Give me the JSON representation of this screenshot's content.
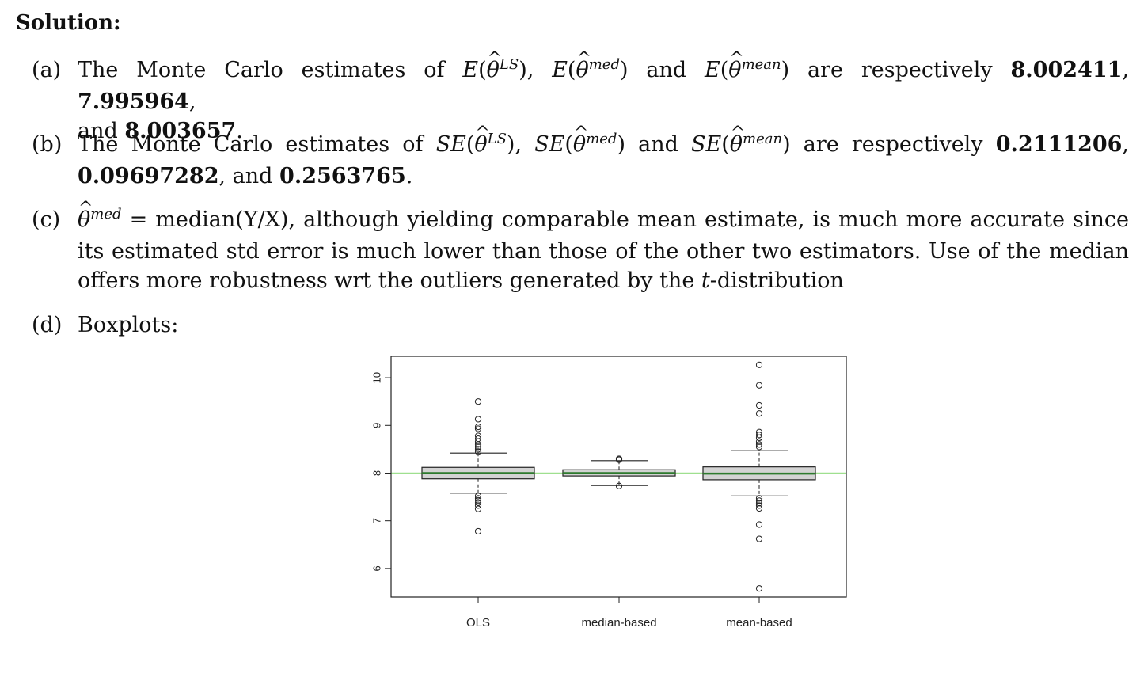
{
  "heading": "Solution:",
  "items": {
    "a": {
      "label": "(a)",
      "text1": "The Monte Carlo estimates of",
      "and_word": "and",
      "text2": "are respectively",
      "v1": "8.002411",
      "v2": "7.995964",
      "and2": "and",
      "v3": "8.003657"
    },
    "b": {
      "label": "(b)",
      "text1": "The Monte Carlo estimates of",
      "and_word": "and",
      "text2": "are respectively",
      "v1": "0.2111206",
      "v2": "0.09697282",
      "and2": "and",
      "v3": "0.2563765"
    },
    "c": {
      "label": "(c)",
      "eq": "= median(Y/X), although yielding comparable mean estimate, is much more accurate since",
      "line2": "its estimated std error is much lower than those of the other two estimators.  Use of the median",
      "line3_pre": "offers more robustness wrt the outliers generated by the",
      "line3_t": "t",
      "line3_post": "-distribution"
    },
    "d": {
      "label": "(d)",
      "text": "Boxplots:"
    }
  },
  "math": {
    "E": "E",
    "SE": "SE",
    "theta": "θ",
    "sup_ls": "LS",
    "sup_med": "med",
    "sup_mean": "mean"
  },
  "chart_data": {
    "type": "boxplot",
    "categories": [
      "OLS",
      "median-based",
      "mean-based"
    ],
    "yticks": [
      6,
      7,
      8,
      9,
      10
    ],
    "ylim": [
      5.4,
      10.45
    ],
    "reference_line": 8,
    "colors": {
      "reference_line": "#9fe08f",
      "median_line": "#2d7a2d",
      "box_fill": "#d3d3d3",
      "box_stroke": "#222222"
    },
    "boxes": [
      {
        "name": "OLS",
        "q1": 7.88,
        "median": 8.0,
        "q3": 8.12,
        "whisker_low": 7.58,
        "whisker_high": 8.42,
        "outliers": [
          9.5,
          9.13,
          8.97,
          8.93,
          8.78,
          8.72,
          8.66,
          8.6,
          8.55,
          8.5,
          8.45,
          7.52,
          7.47,
          7.43,
          7.38,
          7.32,
          7.25,
          6.78
        ]
      },
      {
        "name": "median-based",
        "q1": 7.94,
        "median": 8.0,
        "q3": 8.07,
        "whisker_low": 7.74,
        "whisker_high": 8.26,
        "outliers": [
          8.28,
          8.3,
          7.73
        ]
      },
      {
        "name": "mean-based",
        "q1": 7.86,
        "median": 7.99,
        "q3": 8.13,
        "whisker_low": 7.52,
        "whisker_high": 8.47,
        "outliers": [
          10.27,
          9.84,
          9.42,
          9.25,
          8.86,
          8.8,
          8.74,
          8.66,
          8.6,
          8.55,
          7.47,
          7.42,
          7.37,
          7.32,
          7.26,
          6.92,
          6.62,
          5.58
        ]
      }
    ]
  }
}
